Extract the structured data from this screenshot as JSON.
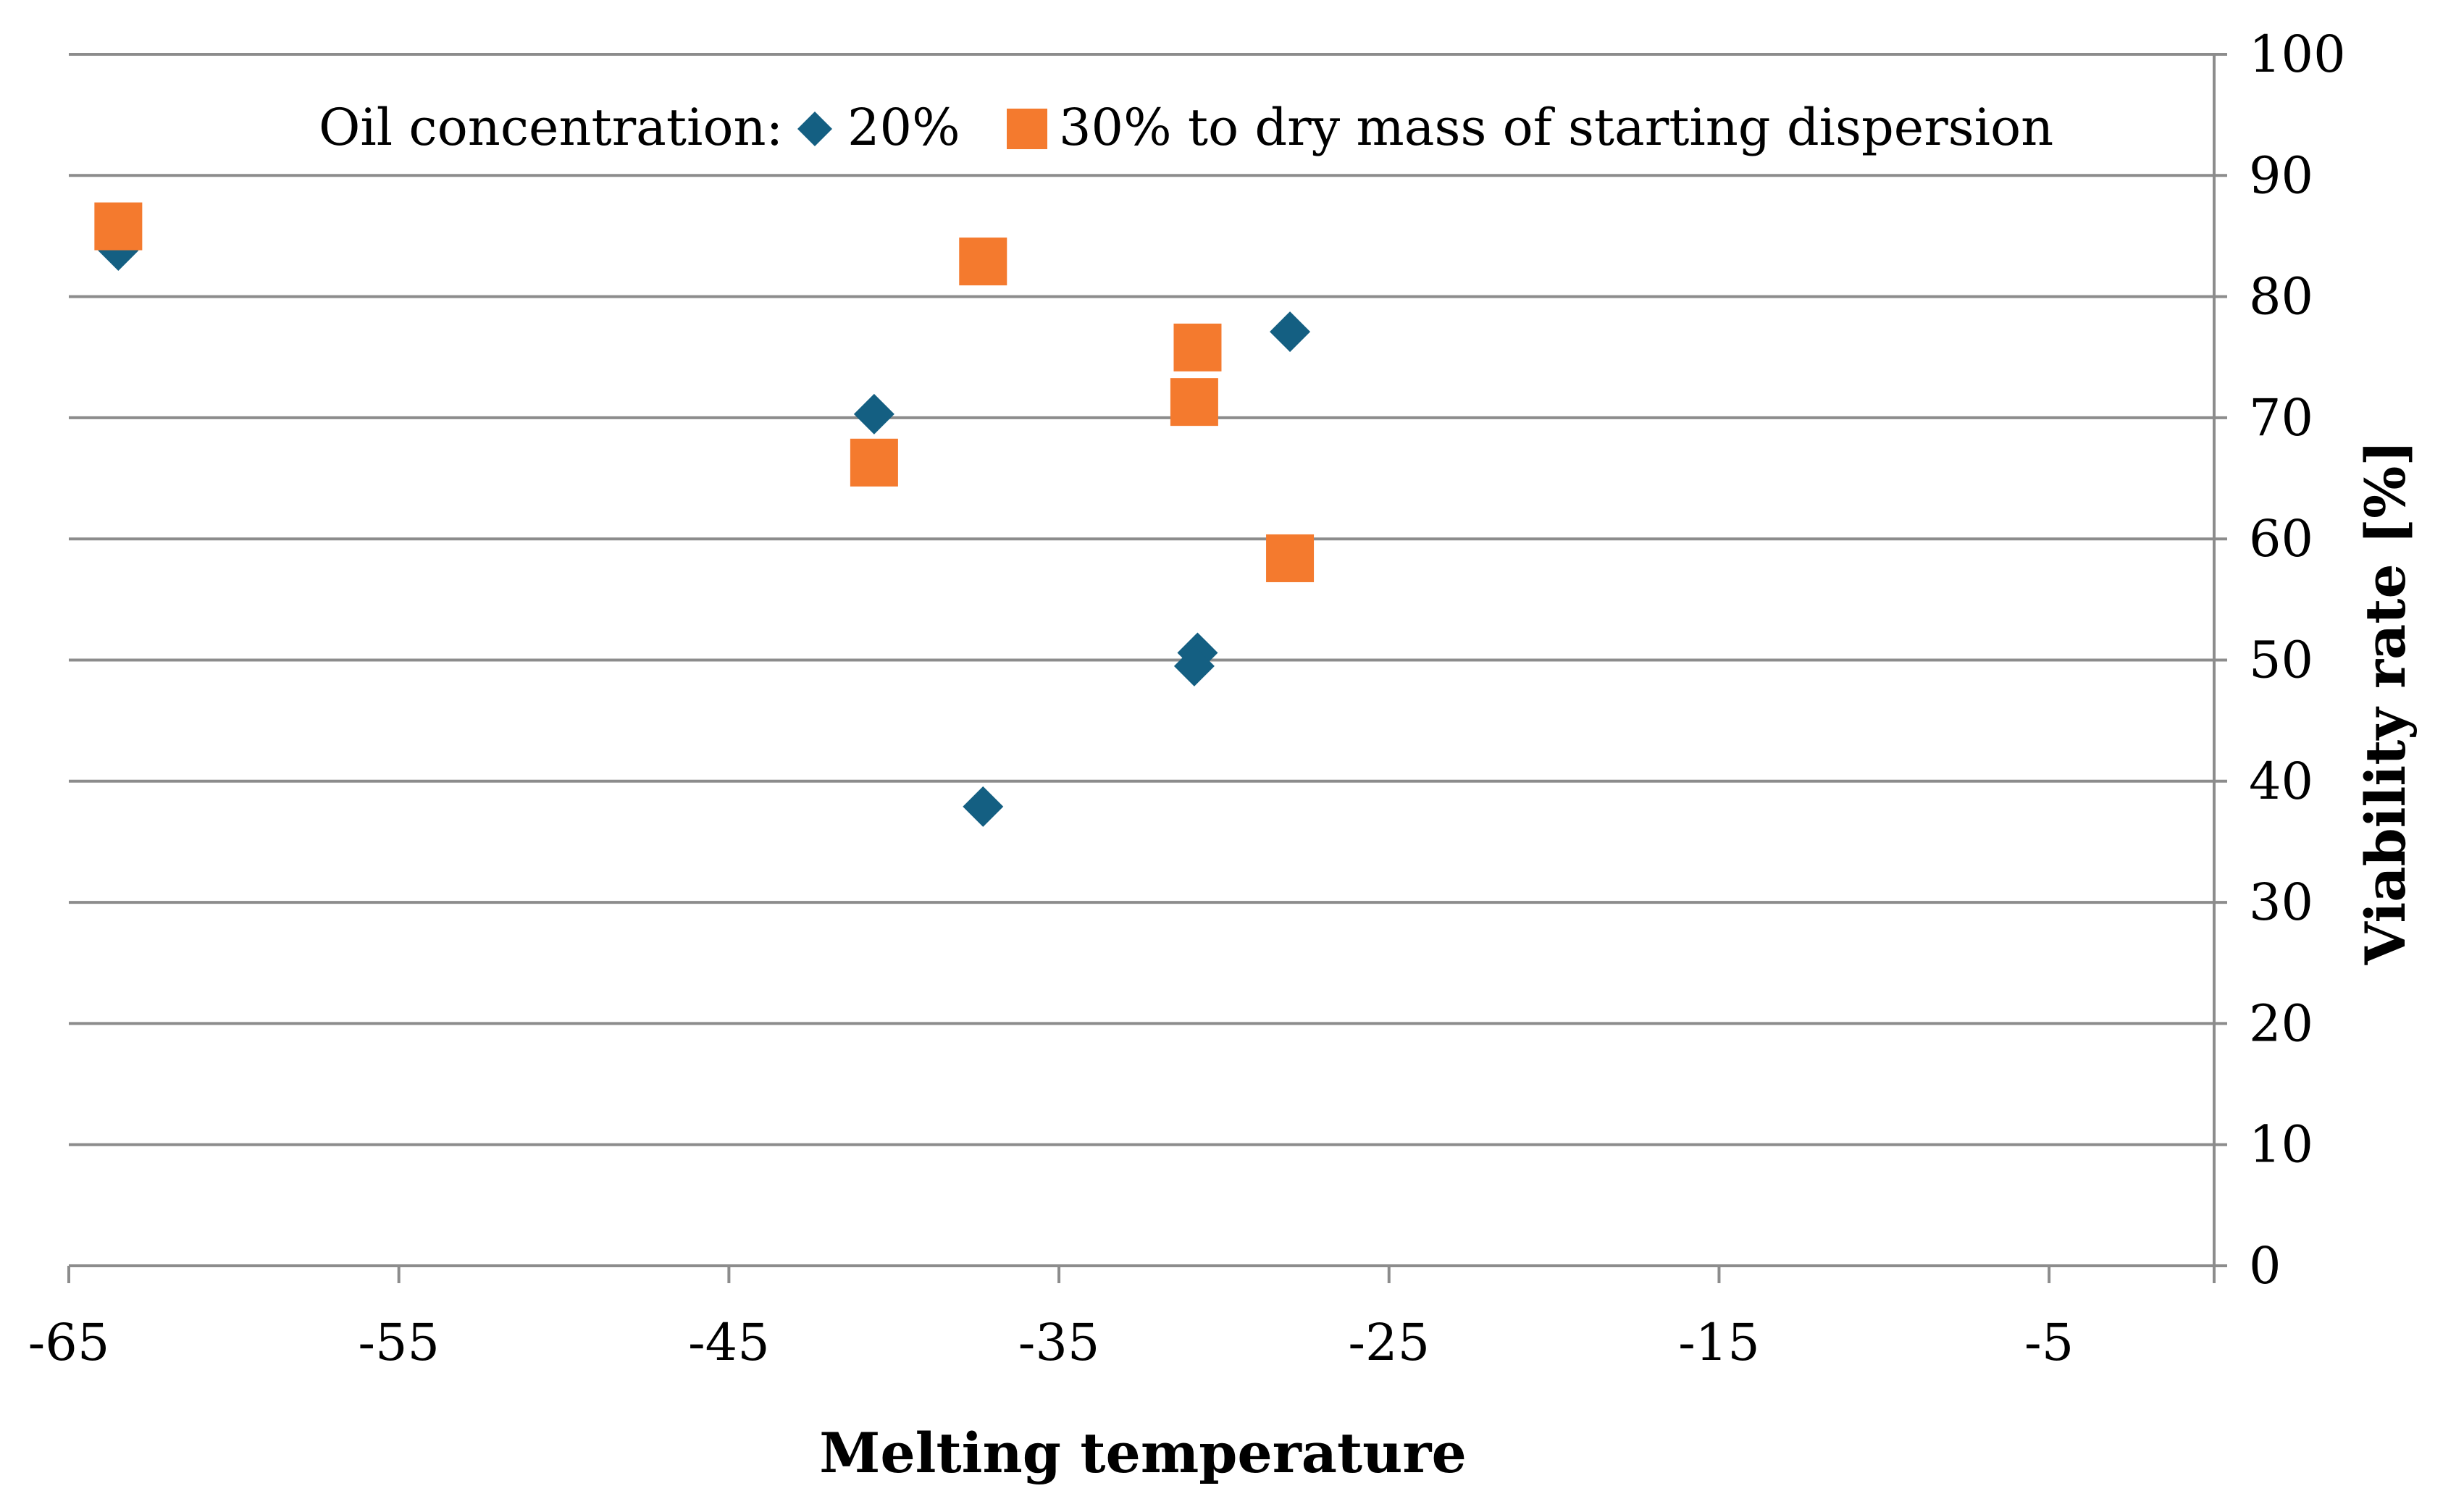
{
  "chart_data": {
    "type": "scatter",
    "title": "",
    "xlabel": "Melting temperature",
    "ylabel": "Viability rate [%]",
    "xlim": [
      -65,
      0
    ],
    "ylim": [
      0,
      100
    ],
    "x_ticks": [
      -65,
      -55,
      -45,
      -35,
      -25,
      -15,
      -5
    ],
    "y_ticks": [
      0,
      10,
      20,
      30,
      40,
      50,
      60,
      70,
      80,
      90,
      100
    ],
    "y_axis_side": "right",
    "grid": "horizontal",
    "legend": {
      "title": "Oil concentration:",
      "position": "top"
    },
    "series": [
      {
        "name": "20%",
        "marker": "diamond",
        "color": "#145f82",
        "points": [
          {
            "x": -63.5,
            "y": 83.8
          },
          {
            "x": -40.6,
            "y": 70.3
          },
          {
            "x": -37.3,
            "y": 37.9
          },
          {
            "x": -30.8,
            "y": 50.6
          },
          {
            "x": -30.9,
            "y": 49.5
          },
          {
            "x": -28.0,
            "y": 77.1
          }
        ]
      },
      {
        "name": "30% to dry mass of starting dispersion",
        "marker": "square",
        "color": "#f47a2e",
        "points": [
          {
            "x": -63.5,
            "y": 85.8
          },
          {
            "x": -40.6,
            "y": 66.3
          },
          {
            "x": -37.3,
            "y": 82.9
          },
          {
            "x": -30.8,
            "y": 75.8
          },
          {
            "x": -30.9,
            "y": 71.3
          },
          {
            "x": -28.0,
            "y": 58.4
          }
        ]
      }
    ]
  }
}
